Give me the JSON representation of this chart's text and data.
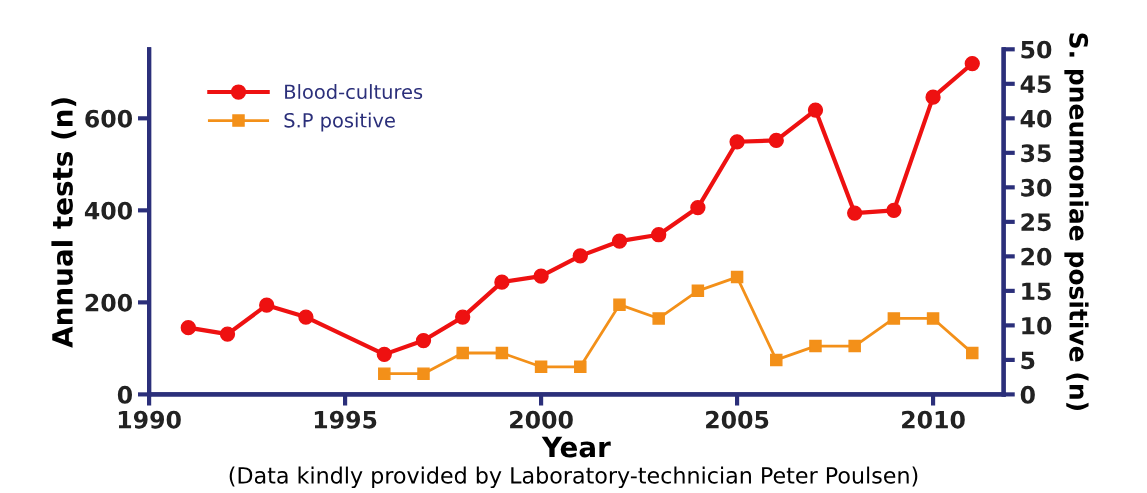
{
  "chart_data": {
    "type": "line",
    "xlabel": "Year",
    "ylabel": "Annual tests (n)",
    "y2label": "S. pneumoniae positive (n)",
    "series": [
      {
        "name": "Blood-cultures",
        "color": "#ee1111",
        "marker": "circle",
        "x": [
          1991,
          1992,
          1993,
          1994,
          1996,
          1997,
          1998,
          1999,
          2000,
          2001,
          2002,
          2003,
          2004,
          2005,
          2006,
          2007,
          2008,
          2009,
          2010,
          2011
        ],
        "values": [
          145,
          131,
          194,
          168,
          87,
          117,
          168,
          244,
          257,
          301,
          333,
          347,
          406,
          549,
          552,
          618,
          394,
          400,
          646,
          719
        ]
      },
      {
        "name": "S.P positive",
        "color": "#f39019",
        "marker": "square",
        "axis": "y2",
        "x": [
          1996,
          1997,
          1998,
          1999,
          2000,
          2001,
          2002,
          2003,
          2004,
          2005,
          2006,
          2007,
          2008,
          2009,
          2010,
          2011
        ],
        "values": [
          3,
          3,
          6,
          6,
          4,
          4,
          13,
          11,
          15,
          17,
          5,
          7,
          7,
          11,
          11,
          6
        ]
      }
    ],
    "xlim": [
      1990,
      2011.8
    ],
    "xticks": [
      1990,
      1995,
      2000,
      2005,
      2010
    ],
    "ylim": [
      0,
      750
    ],
    "yticks": [
      0,
      200,
      400,
      600
    ],
    "y2lim": [
      0,
      50
    ],
    "y2ticks": [
      0,
      5,
      10,
      15,
      20,
      25,
      30,
      35,
      40,
      45,
      50
    ],
    "legend": "top left",
    "grid": false,
    "annotations": [
      "(Data kindly provided by Laboratory-technician Peter Poulsen)"
    ]
  }
}
